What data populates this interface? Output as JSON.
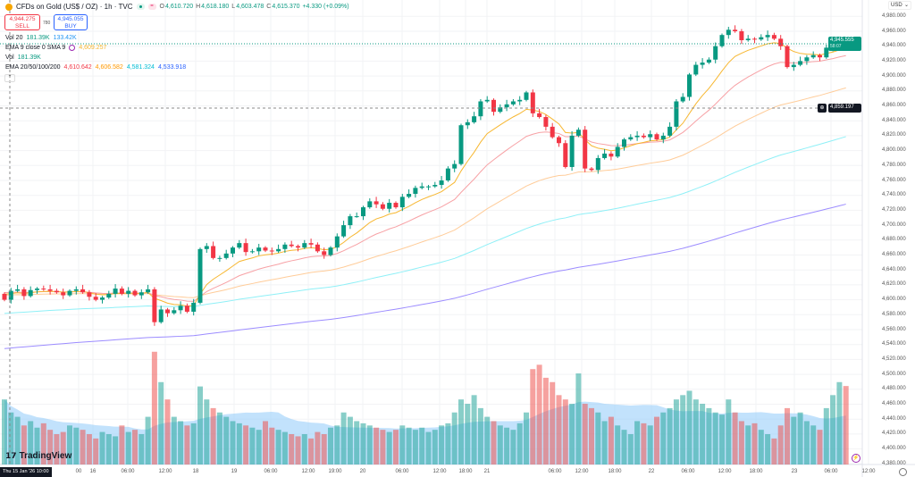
{
  "header": {
    "symbol": "CFDs on Gold (US$ / OZ) · 1h · TVC",
    "open_label": "O",
    "open": "4,610.720",
    "high_label": "H",
    "high": "4,618.180",
    "low_label": "L",
    "low": "4,603.478",
    "close_label": "C",
    "close": "4,615.370",
    "change": "+4.330 (+0.09%)"
  },
  "trade": {
    "sell_price": "4,944.275",
    "sell_label": "SELL",
    "spread": "780",
    "buy_price": "4,945.055",
    "buy_label": "BUY"
  },
  "indicators": {
    "vol20": {
      "label": "Vol 20",
      "v1": "181.39K",
      "v2": "133.42K"
    },
    "ema9": {
      "label": "EMA 9 close 0 SMA 9",
      "value": "4,609.257"
    },
    "vol": {
      "label": "Vol",
      "value": "181.39K"
    },
    "ema_multi": {
      "label": "EMA 20/50/100/200",
      "v20": "4,610.642",
      "v50": "4,606.582",
      "v100": "4,581.324",
      "v200": "4,533.918"
    }
  },
  "price_axis": {
    "currency": "USD",
    "ticks": [
      "4,980.000",
      "4,960.000",
      "4,940.000",
      "4,920.000",
      "4,900.000",
      "4,880.000",
      "4,860.000",
      "4,840.000",
      "4,820.000",
      "4,800.000",
      "4,780.000",
      "4,760.000",
      "4,740.000",
      "4,720.000",
      "4,700.000",
      "4,680.000",
      "4,660.000",
      "4,640.000",
      "4,620.000",
      "4,600.000",
      "4,580.000",
      "4,560.000",
      "4,540.000",
      "4,520.000",
      "4,500.000",
      "4,480.000",
      "4,460.000",
      "4,440.000",
      "4,420.000",
      "4,400.000",
      "4,380.000"
    ],
    "last_price": "4,945.555",
    "countdown": "58:07",
    "crosshair_price": "4,859.197"
  },
  "time_axis": {
    "labels": [
      "00",
      "16",
      "06:00",
      "12:00",
      "18",
      "19",
      "06:00",
      "12:00",
      "19:00",
      "20",
      "06:00",
      "12:00",
      "18:00",
      "21",
      "06:00",
      "12:00",
      "18:00",
      "22",
      "06:00",
      "12:00",
      "18:00",
      "23",
      "06:00",
      "12:00"
    ],
    "crosshair_time": "Thu 15 Jan '26   10:00"
  },
  "branding": "TradingView",
  "colors": {
    "up": "#089981",
    "down": "#f23645",
    "ema9": "#f7b731",
    "ema20": "#f7a1a5",
    "ema50": "#ffcc99",
    "ema100": "#8ff0f7",
    "ema200": "#9c8cff",
    "vol_ma": "#90caf9"
  },
  "chart_data": {
    "type": "candlestick",
    "closes": [
      4600,
      4612,
      4614,
      4605,
      4613,
      4615,
      4614,
      4612,
      4610,
      4606,
      4612,
      4614,
      4610,
      4604,
      4600,
      4603,
      4608,
      4615,
      4608,
      4612,
      4606,
      4610,
      4614,
      4570,
      4587,
      4582,
      4586,
      4592,
      4584,
      4596,
      4668,
      4672,
      4656,
      4656,
      4662,
      4670,
      4676,
      4664,
      4665,
      4670,
      4666,
      4665,
      4668,
      4674,
      4672,
      4670,
      4676,
      4674,
      4665,
      4660,
      4670,
      4685,
      4700,
      4712,
      4712,
      4724,
      4732,
      4728,
      4722,
      4730,
      4724,
      4738,
      4742,
      4750,
      4752,
      4752,
      4754,
      4760,
      4776,
      4782,
      4834,
      4838,
      4846,
      4866,
      4868,
      4852,
      4858,
      4862,
      4866,
      4868,
      4878,
      4850,
      4845,
      4832,
      4818,
      4810,
      4778,
      4820,
      4828,
      4776,
      4774,
      4790,
      4796,
      4792,
      4805,
      4815,
      4818,
      4820,
      4818,
      4822,
      4815,
      4820,
      4832,
      4866,
      4872,
      4902,
      4915,
      4918,
      4922,
      4940,
      4955,
      4962,
      4960,
      4948,
      4950,
      4949,
      4952,
      4955,
      4950,
      4940,
      4912,
      4915,
      4920,
      4925,
      4928,
      4925,
      4938,
      4940,
      4946,
      4945
    ],
    "volumes_k": [
      150,
      120,
      110,
      90,
      100,
      85,
      95,
      80,
      70,
      75,
      90,
      85,
      80,
      70,
      60,
      75,
      70,
      65,
      90,
      75,
      80,
      70,
      110,
      260,
      190,
      150,
      110,
      100,
      90,
      95,
      180,
      150,
      130,
      120,
      110,
      100,
      95,
      90,
      85,
      80,
      100,
      85,
      80,
      75,
      70,
      65,
      70,
      60,
      75,
      70,
      85,
      90,
      120,
      110,
      100,
      95,
      90,
      85,
      80,
      75,
      80,
      90,
      85,
      80,
      85,
      75,
      80,
      90,
      95,
      120,
      150,
      140,
      160,
      130,
      110,
      100,
      90,
      85,
      80,
      95,
      120,
      220,
      230,
      200,
      190,
      160,
      150,
      140,
      210,
      140,
      130,
      120,
      100,
      110,
      90,
      80,
      70,
      100,
      95,
      90,
      110,
      120,
      130,
      150,
      160,
      170,
      150,
      140,
      130,
      120,
      115,
      150,
      120,
      100,
      90,
      95,
      80,
      70,
      60,
      90,
      130,
      110,
      120,
      100,
      90,
      80,
      130,
      160,
      190,
      181
    ],
    "ylim": [
      4380,
      4980
    ]
  }
}
